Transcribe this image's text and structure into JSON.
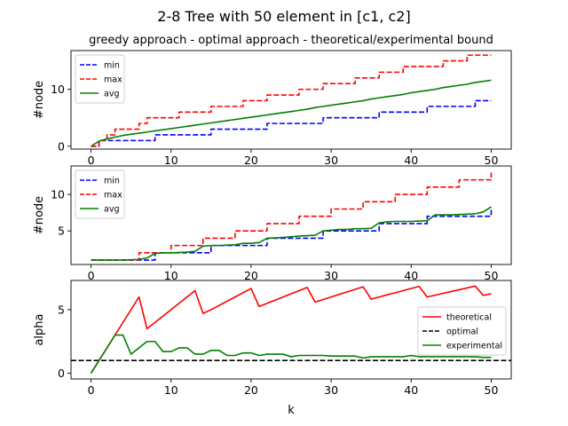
{
  "figure": {
    "title": "2-8 Tree with 50 element in [c1, c2]",
    "subtitle": "greedy approach - optimal approach - theoretical/experimental bound"
  },
  "chart_data": [
    {
      "type": "line",
      "xlabel": "",
      "ylabel": "#node",
      "xlim": [
        -2.5,
        52.5
      ],
      "ylim": [
        -0.5,
        16.8
      ],
      "xticks": [
        0,
        10,
        20,
        30,
        40,
        50
      ],
      "yticks": [
        0,
        10
      ],
      "show_xticklabels": true,
      "legend": "top-left",
      "series": [
        {
          "name": "min",
          "color": "#0000ff",
          "dash": true,
          "step": true,
          "x": [
            0,
            1,
            2,
            3,
            4,
            5,
            6,
            7,
            8,
            9,
            10,
            11,
            12,
            13,
            14,
            15,
            16,
            17,
            18,
            19,
            20,
            21,
            22,
            23,
            24,
            25,
            26,
            27,
            28,
            29,
            30,
            31,
            32,
            33,
            34,
            35,
            36,
            37,
            38,
            39,
            40,
            41,
            42,
            43,
            44,
            45,
            46,
            47,
            48,
            49,
            50
          ],
          "values": [
            0,
            1,
            1,
            1,
            1,
            1,
            1,
            1,
            2,
            2,
            2,
            2,
            2,
            2,
            2,
            3,
            3,
            3,
            3,
            3,
            3,
            3,
            4,
            4,
            4,
            4,
            4,
            4,
            4,
            5,
            5,
            5,
            5,
            5,
            5,
            5,
            6,
            6,
            6,
            6,
            6,
            6,
            7,
            7,
            7,
            7,
            7,
            7,
            8,
            8,
            8
          ]
        },
        {
          "name": "max",
          "color": "#ff0000",
          "dash": true,
          "step": true,
          "x": [
            0,
            1,
            2,
            3,
            4,
            5,
            6,
            7,
            8,
            9,
            10,
            11,
            12,
            13,
            14,
            15,
            16,
            17,
            18,
            19,
            20,
            21,
            22,
            23,
            24,
            25,
            26,
            27,
            28,
            29,
            30,
            31,
            32,
            33,
            34,
            35,
            36,
            37,
            38,
            39,
            40,
            41,
            42,
            43,
            44,
            45,
            46,
            47,
            48,
            49,
            50
          ],
          "values": [
            0,
            1,
            2,
            3,
            3,
            3,
            4,
            5,
            5,
            5,
            5,
            6,
            6,
            6,
            6,
            7,
            7,
            7,
            7,
            8,
            8,
            8,
            9,
            9,
            9,
            9,
            10,
            10,
            10,
            11,
            11,
            11,
            11,
            12,
            12,
            12,
            13,
            13,
            13,
            14,
            14,
            14,
            14,
            14,
            15,
            15,
            15,
            16,
            16,
            16,
            16
          ]
        },
        {
          "name": "avg",
          "color": "#008000",
          "dash": false,
          "step": false,
          "x": [
            0,
            1,
            2,
            3,
            4,
            5,
            6,
            7,
            8,
            9,
            10,
            11,
            12,
            13,
            14,
            15,
            16,
            17,
            18,
            19,
            20,
            21,
            22,
            23,
            24,
            25,
            26,
            27,
            28,
            29,
            30,
            31,
            32,
            33,
            34,
            35,
            36,
            37,
            38,
            39,
            40,
            41,
            42,
            43,
            44,
            45,
            46,
            47,
            48,
            49,
            50
          ],
          "values": [
            0,
            0.9,
            1.3,
            1.6,
            1.9,
            2.1,
            2.3,
            2.5,
            2.7,
            2.9,
            3.1,
            3.3,
            3.5,
            3.7,
            3.9,
            4.1,
            4.3,
            4.5,
            4.7,
            4.9,
            5.1,
            5.3,
            5.5,
            5.7,
            5.9,
            6.1,
            6.3,
            6.5,
            6.8,
            7.0,
            7.2,
            7.4,
            7.6,
            7.8,
            8.0,
            8.3,
            8.5,
            8.7,
            8.9,
            9.1,
            9.4,
            9.6,
            9.8,
            10.0,
            10.3,
            10.5,
            10.7,
            10.9,
            11.2,
            11.4,
            11.6
          ]
        }
      ]
    },
    {
      "type": "line",
      "xlabel": "",
      "ylabel": "#node",
      "xlim": [
        -2.5,
        52.5
      ],
      "ylim": [
        0.4,
        13.9
      ],
      "xticks": [
        0,
        10,
        20,
        30,
        40,
        50
      ],
      "yticks": [
        5,
        10
      ],
      "show_xticklabels": true,
      "legend": "top-left",
      "series": [
        {
          "name": "min",
          "color": "#0000ff",
          "dash": true,
          "step": true,
          "x": [
            0,
            1,
            2,
            3,
            4,
            5,
            6,
            7,
            8,
            9,
            10,
            11,
            12,
            13,
            14,
            15,
            16,
            17,
            18,
            19,
            20,
            21,
            22,
            23,
            24,
            25,
            26,
            27,
            28,
            29,
            30,
            31,
            32,
            33,
            34,
            35,
            36,
            37,
            38,
            39,
            40,
            41,
            42,
            43,
            44,
            45,
            46,
            47,
            48,
            49,
            50
          ],
          "values": [
            1,
            1,
            1,
            1,
            1,
            1,
            1,
            1,
            2,
            2,
            2,
            2,
            2,
            2,
            2,
            3,
            3,
            3,
            3,
            3,
            3,
            3,
            4,
            4,
            4,
            4,
            4,
            4,
            4,
            5,
            5,
            5,
            5,
            5,
            5,
            5,
            6,
            6,
            6,
            6,
            6,
            6,
            7,
            7,
            7,
            7,
            7,
            7,
            7,
            7,
            8
          ]
        },
        {
          "name": "max",
          "color": "#ff0000",
          "dash": true,
          "step": true,
          "x": [
            0,
            1,
            2,
            3,
            4,
            5,
            6,
            7,
            8,
            9,
            10,
            11,
            12,
            13,
            14,
            15,
            16,
            17,
            18,
            19,
            20,
            21,
            22,
            23,
            24,
            25,
            26,
            27,
            28,
            29,
            30,
            31,
            32,
            33,
            34,
            35,
            36,
            37,
            38,
            39,
            40,
            41,
            42,
            43,
            44,
            45,
            46,
            47,
            48,
            49,
            50
          ],
          "values": [
            1,
            1,
            1,
            1,
            1,
            1,
            2,
            2,
            2,
            2,
            3,
            3,
            3,
            3,
            4,
            4,
            4,
            4,
            5,
            5,
            5,
            5,
            6,
            6,
            6,
            6,
            7,
            7,
            7,
            7,
            8,
            8,
            8,
            8,
            9,
            9,
            9,
            9,
            10,
            10,
            10,
            10,
            11,
            11,
            11,
            11,
            12,
            12,
            12,
            12,
            13
          ]
        },
        {
          "name": "avg",
          "color": "#008000",
          "dash": false,
          "step": false,
          "x": [
            0,
            1,
            2,
            3,
            4,
            5,
            6,
            7,
            8,
            9,
            10,
            11,
            12,
            13,
            14,
            15,
            16,
            17,
            18,
            19,
            20,
            21,
            22,
            23,
            24,
            25,
            26,
            27,
            28,
            29,
            30,
            31,
            32,
            33,
            34,
            35,
            36,
            37,
            38,
            39,
            40,
            41,
            42,
            43,
            44,
            45,
            46,
            47,
            48,
            49,
            50
          ],
          "values": [
            1,
            1,
            1,
            1,
            1,
            1.05,
            1.1,
            1.3,
            1.9,
            2.0,
            2.0,
            2.05,
            2.1,
            2.2,
            2.9,
            3.0,
            3.0,
            3.05,
            3.1,
            3.3,
            3.3,
            3.4,
            4.0,
            4.05,
            4.1,
            4.2,
            4.3,
            4.35,
            4.4,
            5.0,
            5.1,
            5.2,
            5.2,
            5.3,
            5.3,
            5.35,
            6.1,
            6.25,
            6.3,
            6.3,
            6.3,
            6.35,
            6.4,
            7.2,
            7.2,
            7.2,
            7.25,
            7.3,
            7.35,
            7.6,
            8.3
          ]
        }
      ]
    },
    {
      "type": "line",
      "xlabel": "k",
      "ylabel": "alpha",
      "xlim": [
        -2.5,
        52.5
      ],
      "ylim": [
        -0.45,
        7.3
      ],
      "xticks": [
        0,
        10,
        20,
        30,
        40,
        50
      ],
      "yticks": [
        0,
        5
      ],
      "show_xticklabels": true,
      "legend": "center-right",
      "series": [
        {
          "name": "theoretical",
          "color": "#ff0000",
          "dash": false,
          "step": false,
          "x": [
            0,
            1,
            2,
            3,
            4,
            5,
            6,
            7,
            8,
            9,
            10,
            11,
            12,
            13,
            14,
            15,
            16,
            17,
            18,
            19,
            20,
            21,
            22,
            23,
            24,
            25,
            26,
            27,
            28,
            29,
            30,
            31,
            32,
            33,
            34,
            35,
            36,
            37,
            38,
            39,
            40,
            41,
            42,
            43,
            44,
            45,
            46,
            47,
            48,
            49,
            50
          ],
          "values": [
            0,
            1,
            2,
            3,
            4,
            5,
            6,
            3.5,
            4.0,
            4.5,
            5.0,
            5.5,
            6.0,
            6.5,
            4.7,
            5.0,
            5.33,
            5.67,
            6.0,
            6.33,
            6.67,
            5.25,
            5.5,
            5.75,
            6.0,
            6.25,
            6.5,
            6.75,
            5.6,
            5.8,
            6.0,
            6.2,
            6.4,
            6.6,
            6.8,
            5.83,
            6.0,
            6.17,
            6.33,
            6.5,
            6.67,
            6.83,
            6.0,
            6.14,
            6.29,
            6.43,
            6.57,
            6.71,
            6.86,
            6.12,
            6.25
          ]
        },
        {
          "name": "optimal",
          "color": "#000000",
          "dash": true,
          "step": false,
          "x": [
            -2.5,
            52.5
          ],
          "values": [
            1,
            1
          ]
        },
        {
          "name": "experimental",
          "color": "#008000",
          "dash": false,
          "step": false,
          "x": [
            0,
            1,
            2,
            3,
            4,
            5,
            6,
            7,
            8,
            9,
            10,
            11,
            12,
            13,
            14,
            15,
            16,
            17,
            18,
            19,
            20,
            21,
            22,
            23,
            24,
            25,
            26,
            27,
            28,
            29,
            30,
            31,
            32,
            33,
            34,
            35,
            36,
            37,
            38,
            39,
            40,
            41,
            42,
            43,
            44,
            45,
            46,
            47,
            48,
            49,
            50
          ],
          "values": [
            0,
            1,
            2,
            3,
            3,
            1.5,
            2,
            2.5,
            2.5,
            1.7,
            1.7,
            2,
            2,
            1.5,
            1.5,
            1.8,
            1.8,
            1.4,
            1.4,
            1.6,
            1.6,
            1.4,
            1.5,
            1.5,
            1.5,
            1.3,
            1.4,
            1.4,
            1.4,
            1.4,
            1.35,
            1.35,
            1.35,
            1.35,
            1.2,
            1.3,
            1.3,
            1.3,
            1.3,
            1.3,
            1.4,
            1.3,
            1.3,
            1.3,
            1.3,
            1.3,
            1.3,
            1.3,
            1.3,
            1.25,
            1.25
          ]
        }
      ]
    }
  ]
}
